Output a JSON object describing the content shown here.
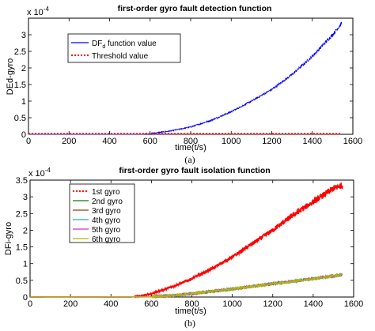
{
  "chart_data": [
    {
      "type": "line",
      "title": "first-order gyro fault detection function",
      "caption": "(a)",
      "xlabel": "time(t/s)",
      "ylabel": "DEd-gyro",
      "exponent_label": "x 10",
      "exponent_power": "-4",
      "xlim": [
        0,
        1600
      ],
      "ylim": [
        0,
        3.5
      ],
      "xticks": [
        0,
        200,
        400,
        600,
        800,
        1000,
        1200,
        1400,
        1600
      ],
      "yticks": [
        0,
        0.5,
        1,
        1.5,
        2,
        2.5,
        3
      ],
      "legend_position": "upper-left",
      "grid": false,
      "series": [
        {
          "name_main": "DF",
          "name_sub": "d",
          "name_rest": " function value",
          "color": "#0000ff",
          "style": "solid-noisy",
          "x": [
            0,
            500,
            560,
            600,
            700,
            800,
            900,
            1000,
            1100,
            1200,
            1300,
            1400,
            1500,
            1545
          ],
          "values": [
            0,
            0,
            0.003,
            0.02,
            0.1,
            0.22,
            0.42,
            0.68,
            1.0,
            1.35,
            1.8,
            2.35,
            3.0,
            3.35
          ]
        },
        {
          "name": "Threshold value",
          "color": "#ff0000",
          "style": "dotted",
          "x": [
            0,
            1545
          ],
          "values": [
            0.015,
            0.015
          ]
        }
      ]
    },
    {
      "type": "line",
      "title": "first-order gyro fault isolation function",
      "caption": "(b)",
      "xlabel": "time(t/s)",
      "ylabel": "DFi-gyro",
      "exponent_label": "x 10",
      "exponent_power": "-4",
      "xlim": [
        0,
        1600
      ],
      "ylim": [
        0,
        3.5
      ],
      "xticks": [
        0,
        200,
        400,
        600,
        800,
        1000,
        1200,
        1400,
        1600
      ],
      "yticks": [
        0,
        0.5,
        1,
        1.5,
        2,
        2.5,
        3,
        3.5
      ],
      "legend_position": "upper-left",
      "grid": false,
      "series": [
        {
          "name": "1st gyro",
          "color": "#ff0000",
          "style": "dotted",
          "x": [
            0,
            500,
            550,
            600,
            700,
            800,
            900,
            1000,
            1100,
            1200,
            1300,
            1400,
            1500,
            1545
          ],
          "values": [
            0,
            0,
            0.03,
            0.1,
            0.3,
            0.55,
            0.85,
            1.2,
            1.6,
            2.0,
            2.45,
            2.85,
            3.25,
            3.35
          ]
        },
        {
          "name": "2nd gyro",
          "color": "#008000",
          "style": "solid",
          "x": [
            0,
            600,
            700,
            800,
            900,
            1000,
            1100,
            1200,
            1300,
            1400,
            1500,
            1545
          ],
          "values": [
            0,
            0.01,
            0.04,
            0.1,
            0.17,
            0.24,
            0.32,
            0.4,
            0.47,
            0.55,
            0.63,
            0.67
          ]
        },
        {
          "name": "3rd gyro",
          "color": "#8b4513",
          "style": "solid",
          "x": [
            0,
            600,
            700,
            800,
            900,
            1000,
            1100,
            1200,
            1300,
            1400,
            1500,
            1545
          ],
          "values": [
            0,
            0.01,
            0.04,
            0.1,
            0.17,
            0.24,
            0.32,
            0.4,
            0.47,
            0.55,
            0.63,
            0.67
          ]
        },
        {
          "name": "4th gyro",
          "color": "#20b2aa",
          "style": "solid",
          "x": [
            0,
            600,
            700,
            800,
            900,
            1000,
            1100,
            1200,
            1300,
            1400,
            1500,
            1545
          ],
          "values": [
            0,
            0.01,
            0.04,
            0.1,
            0.17,
            0.24,
            0.32,
            0.4,
            0.47,
            0.55,
            0.63,
            0.67
          ]
        },
        {
          "name": "5th gyro",
          "color": "#cc33cc",
          "style": "solid",
          "x": [
            0,
            600,
            700,
            800,
            900,
            1000,
            1100,
            1200,
            1300,
            1400,
            1500,
            1545
          ],
          "values": [
            0,
            0.01,
            0.04,
            0.1,
            0.17,
            0.24,
            0.32,
            0.4,
            0.47,
            0.55,
            0.63,
            0.67
          ]
        },
        {
          "name": "6th gyro",
          "color": "#b5b500",
          "style": "solid-markers",
          "x": [
            0,
            600,
            700,
            800,
            900,
            1000,
            1100,
            1200,
            1300,
            1400,
            1500,
            1545
          ],
          "values": [
            0,
            0.01,
            0.04,
            0.1,
            0.17,
            0.24,
            0.32,
            0.4,
            0.47,
            0.55,
            0.63,
            0.67
          ]
        }
      ]
    }
  ]
}
